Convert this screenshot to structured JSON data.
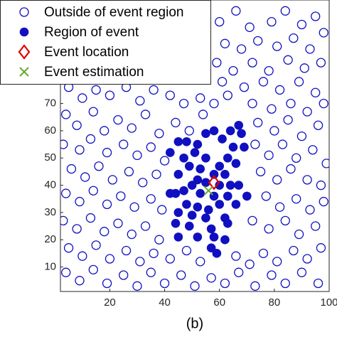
{
  "chart_data": {
    "type": "scatter",
    "caption": "(b)",
    "xlim": [
      2,
      100
    ],
    "ylim": [
      1,
      108
    ],
    "xticks": [
      20,
      40,
      60,
      80,
      100
    ],
    "yticks": [
      10,
      20,
      30,
      40,
      50,
      60,
      70
    ],
    "legend": "upper left",
    "series": [
      {
        "name": "Outside of event region",
        "color": "#1010c0",
        "marker": "open",
        "x": [
          60,
          66,
          71,
          79,
          84,
          90,
          95,
          98,
          62,
          68,
          74,
          81,
          87,
          93,
          59,
          65,
          72,
          78,
          85,
          91,
          97,
          61,
          69,
          76,
          82,
          89,
          95,
          5,
          10,
          15,
          20,
          26,
          31,
          36,
          42,
          47,
          53,
          58,
          63,
          72,
          79,
          86,
          92,
          98,
          4,
          8,
          14,
          18,
          23,
          28,
          33,
          38,
          44,
          49,
          54,
          74,
          80,
          85,
          90,
          96,
          3,
          9,
          13,
          19,
          25,
          30,
          35,
          40,
          73,
          78,
          83,
          88,
          94,
          99,
          6,
          11,
          16,
          21,
          27,
          32,
          37,
          75,
          81,
          86,
          92,
          97,
          4,
          9,
          14,
          19,
          24,
          29,
          35,
          39,
          77,
          82,
          88,
          93,
          98,
          3,
          8,
          13,
          18,
          23,
          28,
          33,
          38,
          72,
          78,
          84,
          89,
          95,
          5,
          10,
          15,
          20,
          26,
          31,
          36,
          42,
          48,
          53,
          66,
          71,
          76,
          81,
          87,
          92,
          97,
          4,
          9,
          14,
          19,
          25,
          30,
          35,
          40,
          46,
          51,
          57,
          62,
          67,
          73,
          79,
          84,
          90,
          96
        ],
        "values": [
          100,
          104,
          98,
          100,
          104,
          99,
          102,
          96,
          92,
          90,
          93,
          91,
          94,
          90,
          85,
          82,
          85,
          82,
          86,
          83,
          85,
          78,
          76,
          78,
          75,
          78,
          74,
          76,
          72,
          75,
          73,
          76,
          71,
          75,
          73,
          70,
          72,
          70,
          73,
          70,
          68,
          70,
          67,
          70,
          66,
          62,
          67,
          60,
          64,
          61,
          66,
          59,
          63,
          60,
          66,
          63,
          60,
          64,
          58,
          62,
          55,
          53,
          57,
          52,
          55,
          51,
          54,
          49,
          55,
          51,
          55,
          50,
          53,
          48,
          46,
          43,
          47,
          42,
          45,
          41,
          44,
          45,
          42,
          46,
          42,
          40,
          37,
          34,
          38,
          33,
          36,
          32,
          35,
          31,
          36,
          32,
          35,
          31,
          34,
          27,
          24,
          28,
          23,
          26,
          22,
          25,
          20,
          27,
          24,
          27,
          22,
          25,
          17,
          14,
          18,
          13,
          16,
          12,
          15,
          13,
          16,
          12,
          14,
          11,
          15,
          12,
          16,
          13,
          17,
          8,
          5,
          9,
          4,
          7,
          3,
          8,
          4,
          7,
          3,
          6,
          4,
          8,
          3,
          7,
          4,
          8,
          4
        ]
      },
      {
        "name": "Region of event",
        "color": "#1010c0",
        "marker": "filled",
        "x": [
          45,
          48,
          52,
          42,
          47,
          51,
          55,
          49,
          53,
          45,
          58,
          62,
          52,
          55,
          60,
          64,
          67,
          50,
          47,
          44,
          42,
          53,
          58,
          63,
          70,
          48,
          52,
          56,
          60,
          66,
          45,
          50,
          55,
          62,
          44,
          49,
          57,
          63,
          45,
          52,
          58,
          62,
          57,
          59,
          63,
          65,
          61,
          64,
          67,
          68,
          69,
          66,
          58,
          60,
          55
        ],
        "values": [
          56,
          56,
          55,
          52,
          50,
          52,
          50,
          47,
          46,
          44,
          44,
          44,
          42,
          41,
          40,
          40,
          40,
          40,
          38,
          37,
          37,
          37,
          36,
          36,
          36,
          33,
          32,
          31,
          33,
          33,
          30,
          29,
          28,
          28,
          26,
          25,
          24,
          26,
          21,
          21,
          21,
          20,
          17,
          15,
          50,
          54,
          57,
          60,
          62,
          59,
          54,
          48,
          60,
          47,
          59
        ]
      },
      {
        "name": "Event location",
        "color": "#e00000",
        "marker": "diamond",
        "x": [
          58
        ],
        "values": [
          41
        ]
      },
      {
        "name": "Event estimation",
        "color": "#6aa82a",
        "marker": "cross",
        "x": [
          56
        ],
        "values": [
          38
        ]
      }
    ]
  }
}
